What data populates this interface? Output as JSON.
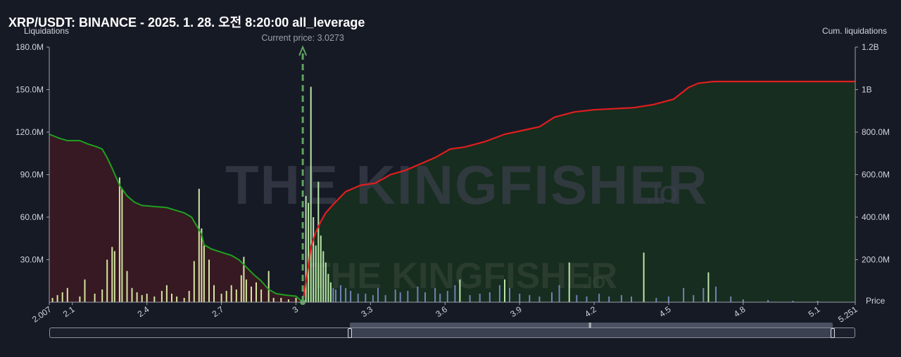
{
  "header": {
    "title": "XRP/USDT: BINANCE - 2025. 1. 28. 오전 8:20:00 all_leverage",
    "left_axis_title": "Liquidations",
    "right_axis_title": "Cum. liquidations",
    "x_axis_title": "Price",
    "current_price_label": "Current price: 3.0273"
  },
  "colors": {
    "background": "#161a25",
    "short_cum_line": "#e01e1e",
    "long_cum_line": "#1fa01f",
    "short_area": "#17301f",
    "long_area": "#3a1a22",
    "long_bars": "#d4e5a0",
    "short_bars_tall": "#b8e6a8",
    "short_bars_small": "#6f82b5",
    "current_price_line": "#5fa35f"
  },
  "watermark": {
    "brand_large": "THE KINGFISHER",
    "suffix_large": ".IO",
    "brand_small": "THE KINGFISHER",
    "suffix_small": ".IO"
  },
  "zoom_bar": {
    "start_fraction": 0.373,
    "end_fraction": 0.97
  },
  "chart_data": {
    "type": "bar",
    "title": "XRP/USDT: BINANCE - 2025. 1. 28. 오전 8:20:00 all_leverage",
    "xlabel": "Price",
    "ylabel": "Liquidations",
    "y2label": "Cum. liquidations",
    "current_price": 3.0273,
    "xlim": [
      2.007,
      5.251
    ],
    "ylim": [
      0,
      180000000
    ],
    "y2lim": [
      0,
      1200000000
    ],
    "x_ticks": [
      "2.007",
      "2.1",
      "2.4",
      "2.7",
      "3",
      "3.3",
      "3.6",
      "3.9",
      "4.2",
      "4.5",
      "4.8",
      "5.1",
      "5.251"
    ],
    "y_ticks": [
      "30.0M",
      "60.0M",
      "90.0M",
      "120.0M",
      "150.0M",
      "180.0M"
    ],
    "y2_ticks": [
      "200.0M",
      "400.0M",
      "600.0M",
      "800.0M",
      "1B",
      "1.2B"
    ],
    "grid": false,
    "long_liquidation_bars": [
      [
        2.02,
        3000000
      ],
      [
        2.04,
        5000000
      ],
      [
        2.06,
        7000000
      ],
      [
        2.08,
        10000000
      ],
      [
        2.13,
        4000000
      ],
      [
        2.15,
        16000000
      ],
      [
        2.19,
        6000000
      ],
      [
        2.22,
        9000000
      ],
      [
        2.24,
        30000000
      ],
      [
        2.26,
        39000000
      ],
      [
        2.27,
        36000000
      ],
      [
        2.29,
        88000000
      ],
      [
        2.3,
        80000000
      ],
      [
        2.32,
        22000000
      ],
      [
        2.34,
        10000000
      ],
      [
        2.36,
        7000000
      ],
      [
        2.38,
        5000000
      ],
      [
        2.4,
        6000000
      ],
      [
        2.43,
        4000000
      ],
      [
        2.46,
        8000000
      ],
      [
        2.48,
        12000000
      ],
      [
        2.5,
        6000000
      ],
      [
        2.52,
        4000000
      ],
      [
        2.55,
        3000000
      ],
      [
        2.57,
        8000000
      ],
      [
        2.59,
        29000000
      ],
      [
        2.61,
        80000000
      ],
      [
        2.62,
        52000000
      ],
      [
        2.63,
        40000000
      ],
      [
        2.65,
        30000000
      ],
      [
        2.67,
        12000000
      ],
      [
        2.7,
        6000000
      ],
      [
        2.72,
        8000000
      ],
      [
        2.74,
        12000000
      ],
      [
        2.76,
        9000000
      ],
      [
        2.78,
        19000000
      ],
      [
        2.79,
        32000000
      ],
      [
        2.8,
        16000000
      ],
      [
        2.82,
        11000000
      ],
      [
        2.84,
        14000000
      ],
      [
        2.86,
        9000000
      ],
      [
        2.89,
        22000000
      ],
      [
        2.91,
        3000000
      ],
      [
        2.94,
        3000000
      ],
      [
        2.97,
        2000000
      ],
      [
        3.0,
        3000000
      ]
    ],
    "short_liquidation_bars": [
      [
        3.04,
        75000000
      ],
      [
        3.05,
        70000000
      ],
      [
        3.06,
        152000000
      ],
      [
        3.07,
        60000000
      ],
      [
        3.08,
        40000000
      ],
      [
        3.09,
        85000000
      ],
      [
        3.1,
        47000000
      ],
      [
        3.11,
        36000000
      ],
      [
        3.12,
        28000000
      ],
      [
        3.13,
        20000000
      ],
      [
        3.14,
        14000000
      ],
      [
        3.15,
        10000000
      ],
      [
        3.16,
        9000000
      ],
      [
        3.18,
        12000000
      ],
      [
        3.2,
        10000000
      ],
      [
        3.22,
        8000000
      ],
      [
        3.25,
        6000000
      ],
      [
        3.28,
        6000000
      ],
      [
        3.31,
        5000000
      ],
      [
        3.33,
        10000000
      ],
      [
        3.36,
        5000000
      ],
      [
        3.4,
        9000000
      ],
      [
        3.42,
        7000000
      ],
      [
        3.45,
        8000000
      ],
      [
        3.49,
        11000000
      ],
      [
        3.52,
        7000000
      ],
      [
        3.56,
        10000000
      ],
      [
        3.58,
        6000000
      ],
      [
        3.61,
        8000000
      ],
      [
        3.64,
        12000000
      ],
      [
        3.66,
        16000000
      ],
      [
        3.7,
        5000000
      ],
      [
        3.74,
        6000000
      ],
      [
        3.78,
        7000000
      ],
      [
        3.82,
        12000000
      ],
      [
        3.84,
        16000000
      ],
      [
        3.86,
        10000000
      ],
      [
        3.9,
        6000000
      ],
      [
        3.94,
        5000000
      ],
      [
        3.98,
        4000000
      ],
      [
        4.03,
        7000000
      ],
      [
        4.06,
        12000000
      ],
      [
        4.1,
        28000000
      ],
      [
        4.13,
        5000000
      ],
      [
        4.17,
        4000000
      ],
      [
        4.22,
        6000000
      ],
      [
        4.26,
        4000000
      ],
      [
        4.31,
        5000000
      ],
      [
        4.35,
        4000000
      ],
      [
        4.4,
        35000000
      ],
      [
        4.45,
        3000000
      ],
      [
        4.5,
        4000000
      ],
      [
        4.56,
        10000000
      ],
      [
        4.6,
        5000000
      ],
      [
        4.64,
        10000000
      ],
      [
        4.66,
        21000000
      ],
      [
        4.69,
        11000000
      ],
      [
        4.75,
        4000000
      ],
      [
        4.8,
        2000000
      ],
      [
        4.9,
        1500000
      ],
      [
        5.0,
        1000000
      ],
      [
        5.1,
        1000000
      ]
    ],
    "long_cumulative": [
      [
        2.007,
        790000000
      ],
      [
        2.05,
        770000000
      ],
      [
        2.08,
        760000000
      ],
      [
        2.13,
        760000000
      ],
      [
        2.16,
        745000000
      ],
      [
        2.2,
        730000000
      ],
      [
        2.22,
        720000000
      ],
      [
        2.24,
        680000000
      ],
      [
        2.26,
        630000000
      ],
      [
        2.29,
        550000000
      ],
      [
        2.32,
        500000000
      ],
      [
        2.35,
        470000000
      ],
      [
        2.38,
        455000000
      ],
      [
        2.43,
        450000000
      ],
      [
        2.48,
        445000000
      ],
      [
        2.55,
        420000000
      ],
      [
        2.58,
        400000000
      ],
      [
        2.6,
        360000000
      ],
      [
        2.62,
        320000000
      ],
      [
        2.63,
        270000000
      ],
      [
        2.66,
        250000000
      ],
      [
        2.7,
        235000000
      ],
      [
        2.74,
        220000000
      ],
      [
        2.77,
        200000000
      ],
      [
        2.8,
        165000000
      ],
      [
        2.83,
        130000000
      ],
      [
        2.86,
        100000000
      ],
      [
        2.89,
        60000000
      ],
      [
        2.92,
        40000000
      ],
      [
        2.96,
        33000000
      ],
      [
        3.0,
        28000000
      ],
      [
        3.0273,
        0
      ]
    ],
    "short_cumulative": [
      [
        3.0273,
        0
      ],
      [
        3.04,
        100000000
      ],
      [
        3.05,
        170000000
      ],
      [
        3.06,
        260000000
      ],
      [
        3.08,
        330000000
      ],
      [
        3.1,
        380000000
      ],
      [
        3.12,
        420000000
      ],
      [
        3.15,
        460000000
      ],
      [
        3.2,
        520000000
      ],
      [
        3.26,
        550000000
      ],
      [
        3.32,
        560000000
      ],
      [
        3.38,
        600000000
      ],
      [
        3.44,
        620000000
      ],
      [
        3.5,
        650000000
      ],
      [
        3.56,
        680000000
      ],
      [
        3.62,
        720000000
      ],
      [
        3.68,
        730000000
      ],
      [
        3.76,
        755000000
      ],
      [
        3.84,
        790000000
      ],
      [
        3.92,
        810000000
      ],
      [
        3.98,
        825000000
      ],
      [
        4.04,
        870000000
      ],
      [
        4.12,
        895000000
      ],
      [
        4.2,
        905000000
      ],
      [
        4.28,
        910000000
      ],
      [
        4.36,
        915000000
      ],
      [
        4.44,
        930000000
      ],
      [
        4.52,
        955000000
      ],
      [
        4.58,
        1010000000
      ],
      [
        4.62,
        1030000000
      ],
      [
        4.68,
        1038000000
      ],
      [
        4.8,
        1038000000
      ],
      [
        5.251,
        1038000000
      ]
    ]
  }
}
